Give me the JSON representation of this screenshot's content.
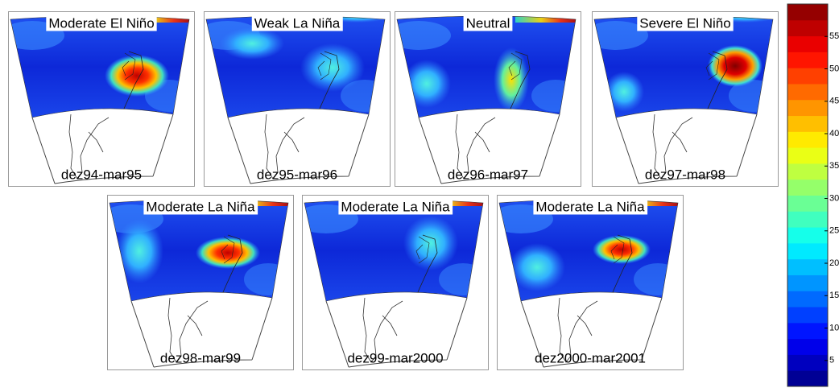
{
  "panels": [
    {
      "title": "Moderate El Niño",
      "period": "dez94-mar95"
    },
    {
      "title": "Weak La Niña",
      "period": "dez95-mar96"
    },
    {
      "title": "Neutral",
      "period": "dez96-mar97"
    },
    {
      "title": "Severe El Niño",
      "period": "dez97-mar98"
    },
    {
      "title": "Moderate La Niña",
      "period": "dez98-mar99"
    },
    {
      "title": "Moderate La Niña",
      "period": "dez99-mar2000"
    },
    {
      "title": "Moderate La Niña",
      "period": "dez2000-mar2001"
    }
  ],
  "colorbar": {
    "range": [
      1,
      60
    ],
    "ticks": [
      5,
      10,
      15,
      20,
      25,
      30,
      35,
      40,
      45,
      50,
      55
    ]
  }
}
